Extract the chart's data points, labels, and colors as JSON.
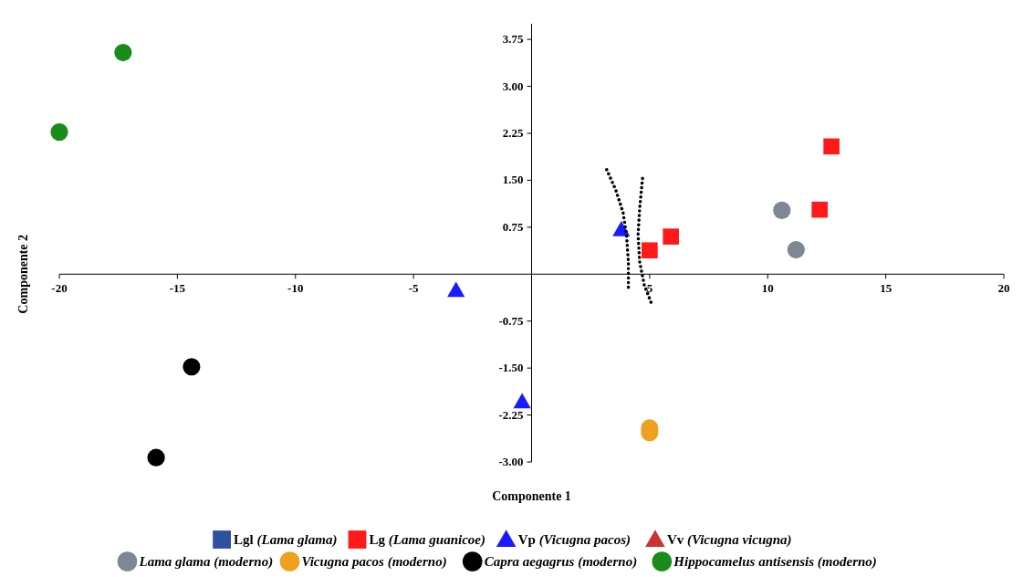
{
  "chart_data": {
    "type": "scatter",
    "xlabel": "Componente 1",
    "ylabel": "Componente 2",
    "xlim": [
      -20,
      20
    ],
    "ylim": [
      -3,
      4
    ],
    "xticks": [
      -20,
      -15,
      -10,
      -5,
      5,
      10,
      15,
      20
    ],
    "yticks": [
      {
        "value": -3,
        "label": "-3.00"
      },
      {
        "value": -2.25,
        "label": "-2.25"
      },
      {
        "value": -1.5,
        "label": "-1.50"
      },
      {
        "value": -0.75,
        "label": "-0.75"
      },
      {
        "value": 0.75,
        "label": "0.75"
      },
      {
        "value": 1.5,
        "label": "1.50"
      },
      {
        "value": 2.25,
        "label": "2.25"
      },
      {
        "value": 3,
        "label": "3.00"
      },
      {
        "value": 3.75,
        "label": "3.75"
      }
    ],
    "legend": "bottom",
    "grid": false,
    "series": [
      {
        "name": "Lgl (Lama glama)",
        "color": "#2f4f9f",
        "marker": "square"
      },
      {
        "name": "Lg (Lama guanicoe)",
        "color": "#ff1a1a",
        "marker": "square",
        "x": [
          5.0,
          5.9,
          12.2,
          12.7
        ],
        "values": [
          0.38,
          0.6,
          1.03,
          2.04
        ]
      },
      {
        "name": "Vp (Vicugna pacos)",
        "color": "#1a1aff",
        "marker": "triangle",
        "x": [
          -3.2,
          -0.4,
          3.8
        ],
        "values": [
          -0.26,
          -2.04,
          0.71
        ]
      },
      {
        "name": "Vv (Vicugna vicugna)",
        "color": "#cc3333",
        "marker": "triangle"
      },
      {
        "name": "Lama glama (moderno)",
        "color": "#7f8794",
        "marker": "circle",
        "x": [
          10.6,
          11.2
        ],
        "values": [
          1.02,
          0.39
        ]
      },
      {
        "name": "Vicugna pacos (moderno)",
        "color": "#f0a020",
        "marker": "circle",
        "x": [
          5.0,
          5.0
        ],
        "values": [
          -2.46,
          -2.53
        ]
      },
      {
        "name": "Capra aegagrus (moderno)",
        "color": "#000000",
        "marker": "circle",
        "x": [
          -14.4,
          -15.9
        ],
        "values": [
          -1.48,
          -2.93
        ]
      },
      {
        "name": "Hippocamelus antisensis (moderno)",
        "color": "#1a8c1a",
        "marker": "circle",
        "x": [
          -17.3,
          -20.0
        ],
        "values": [
          3.54,
          2.27
        ]
      },
      {
        "type": "line",
        "color": "#000000",
        "line_style": "dotted",
        "x": [
          3.18,
          3.56,
          3.87,
          4.02,
          4.1,
          4.1
        ],
        "values": [
          1.67,
          1.35,
          0.99,
          0.63,
          0.19,
          -0.22
        ]
      },
      {
        "type": "line",
        "color": "#000000",
        "line_style": "dotted",
        "x": [
          4.7,
          4.58,
          4.51,
          4.58,
          4.77,
          5.08
        ],
        "values": [
          1.53,
          1.06,
          0.63,
          0.19,
          -0.17,
          -0.47
        ]
      }
    ]
  }
}
